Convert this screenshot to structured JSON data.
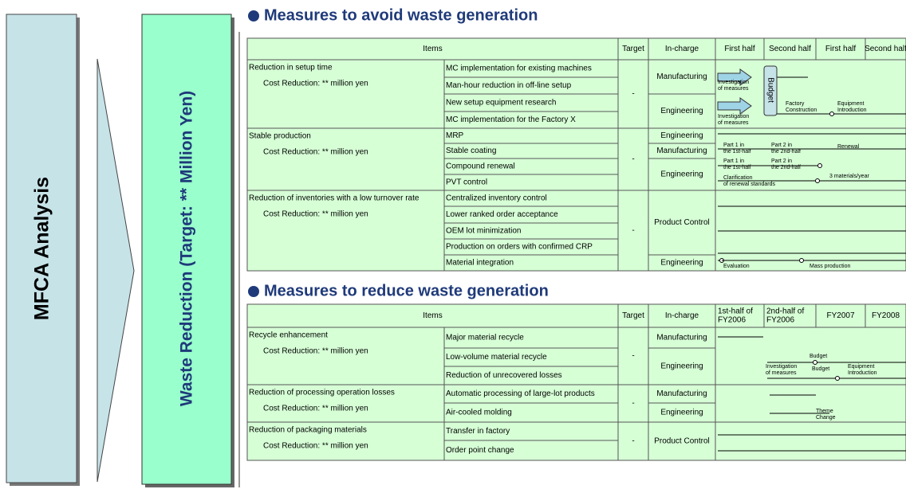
{
  "sidebar": {
    "left": "MFCA Analysis",
    "right": "Waste Reduction  (Target: ** Million Yen)"
  },
  "sections": [
    {
      "title": "Measures to avoid waste generation",
      "header": [
        "Items",
        "Target",
        "In-charge"
      ],
      "periods": [
        [
          "First half"
        ],
        [
          "Second half"
        ],
        [
          "First half"
        ],
        [
          "Second half"
        ]
      ],
      "groups": [
        {
          "name": "Reduction in setup time",
          "note": "Cost Reduction: ** million yen",
          "target": "-",
          "items": [
            "MC implementation for existing machines",
            "Man-hour reduction in off-line setup",
            "New setup equipment research",
            "MC implementation for the Factory X"
          ],
          "incharge": [
            "Manufacturing",
            "Engineering"
          ]
        },
        {
          "name": "Stable production",
          "note": "Cost Reduction: ** million yen",
          "target": "-",
          "items": [
            "MRP",
            "Stable coating",
            "Compound renewal",
            "PVT control"
          ],
          "incharge": [
            "Engineering",
            "Manufacturing",
            "Engineering"
          ]
        },
        {
          "name": "Reduction of inventories with a low turnover rate",
          "note": "Cost Reduction: ** million yen",
          "target": "-",
          "items": [
            "Centralized inventory control",
            "Lower ranked order acceptance",
            "OEM lot minimization",
            "Production on orders with confirmed CRP",
            "Material integration"
          ],
          "incharge": [
            "Product Control",
            "Engineering"
          ]
        }
      ],
      "labels": [
        [
          "Investigation",
          "of measures"
        ],
        [
          "Budget"
        ],
        [
          "Factory",
          "Construction"
        ],
        [
          "Equipment",
          "Introduction"
        ],
        [
          "Investigation",
          "of measures"
        ],
        [
          "Part 1 in",
          "the 1st-half"
        ],
        [
          "Part 2 in",
          "the 2nd-half"
        ],
        [
          "Renewal"
        ],
        [
          "Part 1 in",
          "the 1st-half"
        ],
        [
          "Part 2 in",
          "the 2nd-half"
        ],
        [
          "Clarification",
          "of renewal standards"
        ],
        [
          "3 materials/year"
        ],
        [
          "Evaluation"
        ],
        [
          "Mass production"
        ]
      ]
    },
    {
      "title": "Measures to reduce waste generation",
      "header": [
        "Items",
        "Target",
        "In-charge"
      ],
      "periods": [
        [
          "1st-half of",
          "FY2006"
        ],
        [
          "2nd-half of",
          "FY2006"
        ],
        [
          "FY2007"
        ],
        [
          "FY2008"
        ]
      ],
      "groups": [
        {
          "name": "Recycle enhancement",
          "note": "Cost Reduction: ** million yen",
          "target": "-",
          "items": [
            "Major material recycle",
            "Low-volume material recycle",
            "Reduction of unrecovered losses"
          ],
          "incharge": [
            "Manufacturing",
            "Engineering"
          ]
        },
        {
          "name": "Reduction of processing operation losses",
          "note": "Cost Reduction: ** million yen",
          "target": "-",
          "items": [
            "Automatic processing of large-lot products",
            "Air-cooled molding"
          ],
          "incharge": [
            "Manufacturing",
            "Engineering"
          ]
        },
        {
          "name": "Reduction of packaging materials",
          "note": "Cost Reduction: ** million yen",
          "target": "-",
          "items": [
            "Transfer in factory",
            "Order point change"
          ],
          "incharge": [
            "Product Control"
          ]
        }
      ],
      "labels": [
        [
          "Budget"
        ],
        [
          "Investigation",
          "of measures"
        ],
        [
          "Budget"
        ],
        [
          "Equipment",
          "Introduction"
        ],
        [
          "Theme",
          "Change"
        ]
      ]
    }
  ]
}
